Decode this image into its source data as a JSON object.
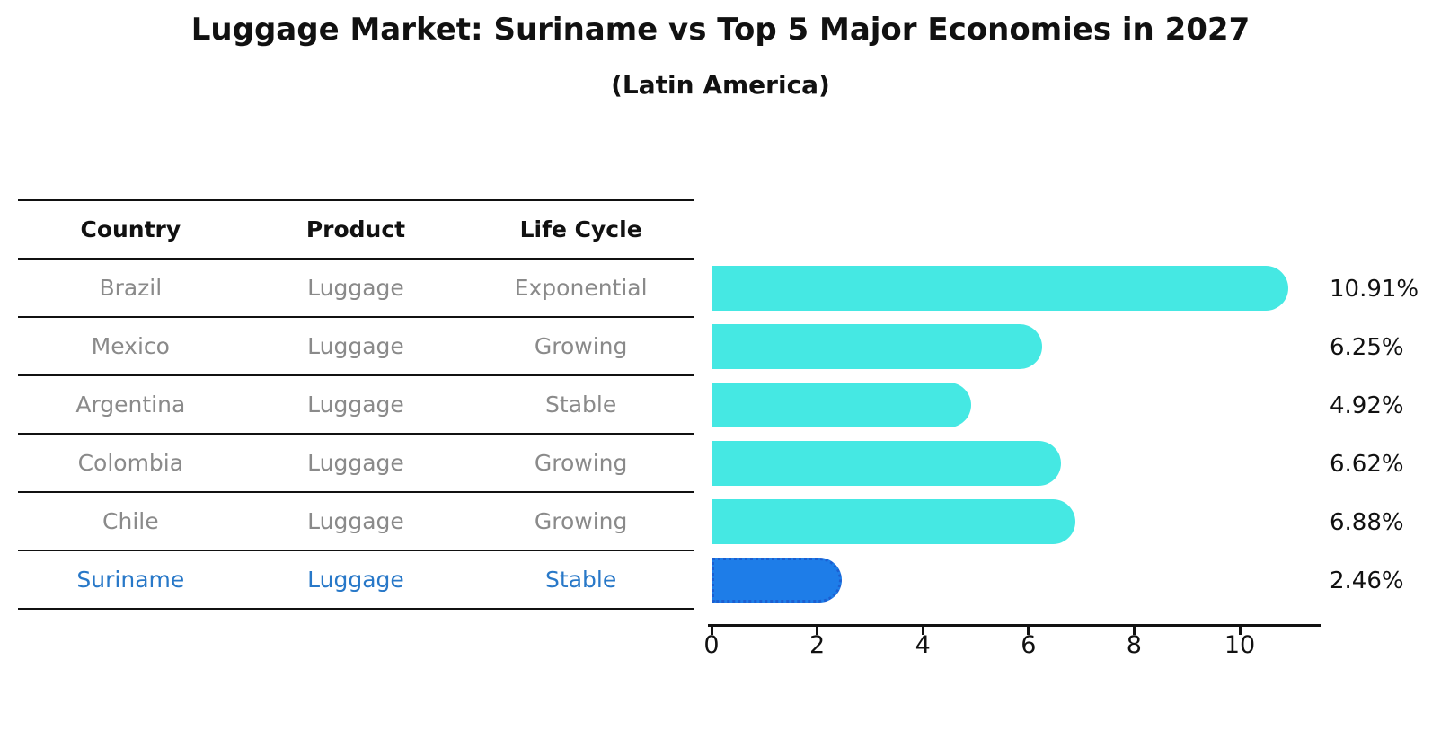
{
  "title": "Luggage Market: Suriname vs Top 5 Major Economies in 2027",
  "subtitle": "(Latin America)",
  "table": {
    "headers": [
      "Country",
      "Product",
      "Life Cycle"
    ],
    "rows": [
      {
        "country": "Brazil",
        "product": "Luggage",
        "life_cycle": "Exponential",
        "highlight": false
      },
      {
        "country": "Mexico",
        "product": "Luggage",
        "life_cycle": "Growing",
        "highlight": false
      },
      {
        "country": "Argentina",
        "product": "Luggage",
        "life_cycle": "Stable",
        "highlight": false
      },
      {
        "country": "Colombia",
        "product": "Luggage",
        "life_cycle": "Growing",
        "highlight": false
      },
      {
        "country": "Chile",
        "product": "Luggage",
        "life_cycle": "Growing",
        "highlight": false
      },
      {
        "country": "Suriname",
        "product": "Luggage",
        "life_cycle": "Stable",
        "highlight": true
      }
    ]
  },
  "chart_data": {
    "type": "bar",
    "orientation": "horizontal",
    "title": "Luggage Market: Suriname vs Top 5 Major Economies in 2027",
    "subtitle": "(Latin America)",
    "categories": [
      "Brazil",
      "Mexico",
      "Argentina",
      "Colombia",
      "Chile",
      "Suriname"
    ],
    "values": [
      10.91,
      6.25,
      4.92,
      6.62,
      6.88,
      2.46
    ],
    "value_labels": [
      "10.91%",
      "6.25%",
      "4.92%",
      "6.62%",
      "6.88%",
      "2.46%"
    ],
    "x_ticks": [
      0,
      2,
      4,
      6,
      8,
      10
    ],
    "xlim": [
      0,
      11.53
    ],
    "grid": false,
    "legend": "none",
    "highlight_index": 5
  },
  "colors": {
    "bar": "#45E8E3",
    "highlight_bar": "#1E7DE8",
    "highlight_bar_border": "#1C5FD1",
    "row_text": "#8a8a8a",
    "highlight_text": "#2878C8"
  }
}
